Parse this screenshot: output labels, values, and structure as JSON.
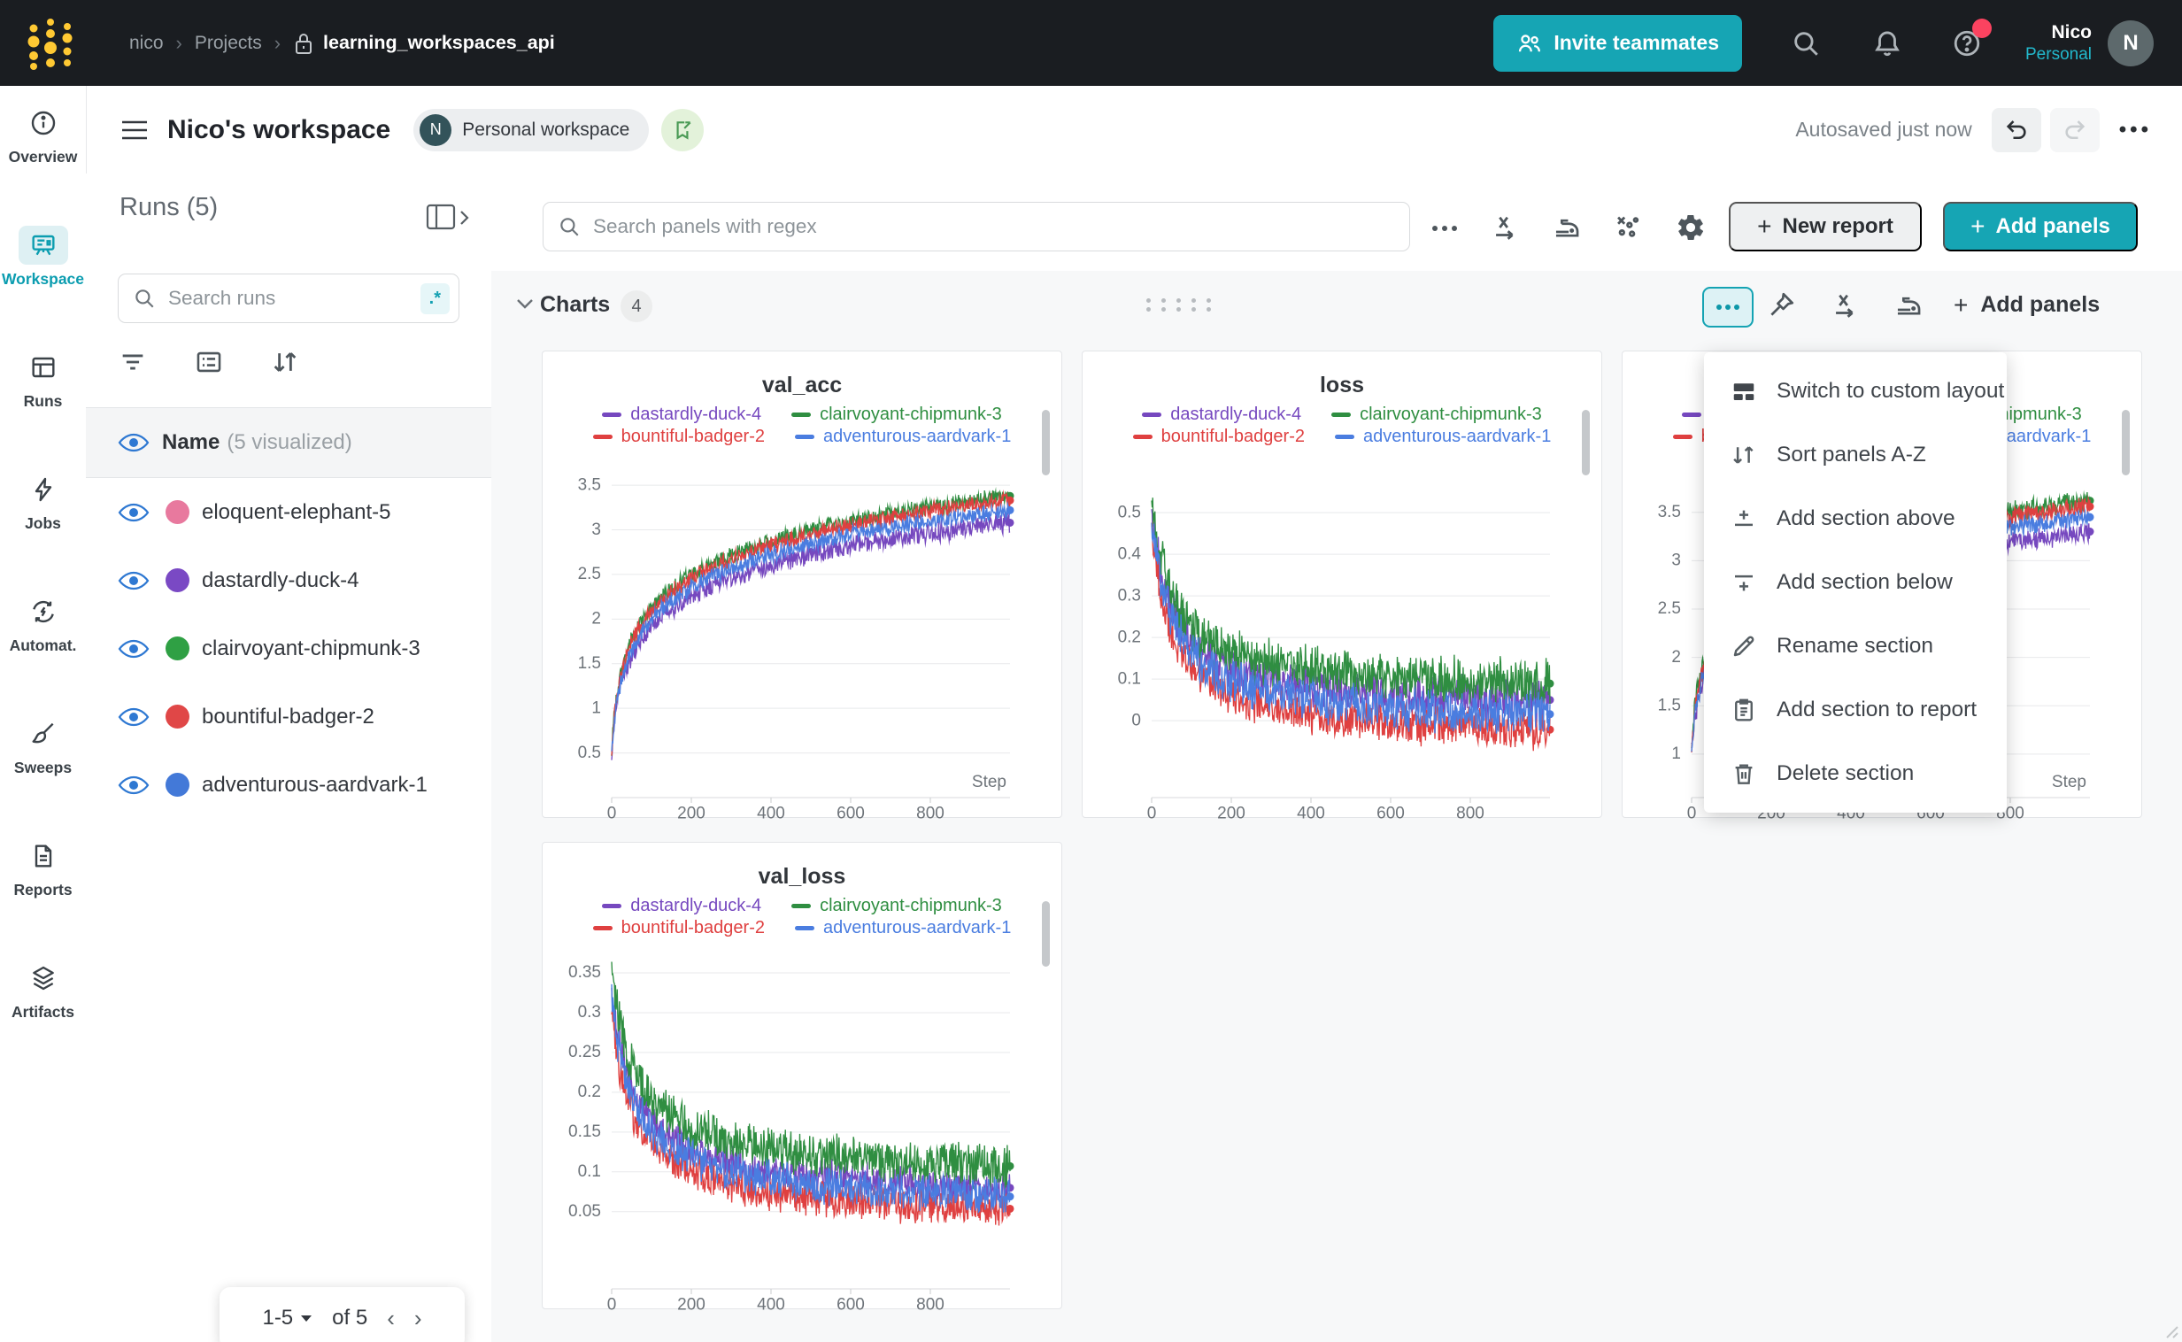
{
  "colors": {
    "accent": "#16a5b4",
    "nav_bg": "#1a1d21",
    "logo_yellow": "#ffc933",
    "eye_blue": "#2e78d2",
    "badge_red": "#fb4360"
  },
  "nav": {
    "breadcrumb_user": "nico",
    "breadcrumb_section": "Projects",
    "project": "learning_workspaces_api",
    "invite_label": "Invite teammates",
    "user_name": "Nico",
    "user_scope": "Personal",
    "avatar_initial": "N"
  },
  "header": {
    "title": "Nico's workspace",
    "badge_initial": "N",
    "badge_label": "Personal workspace",
    "autosaved": "Autosaved just now"
  },
  "sidebar": {
    "items": [
      {
        "label": "Overview",
        "active": false
      },
      {
        "label": "Workspace",
        "active": true
      },
      {
        "label": "Runs",
        "active": false
      },
      {
        "label": "Jobs",
        "active": false
      },
      {
        "label": "Automat.",
        "active": false
      },
      {
        "label": "Sweeps",
        "active": false
      },
      {
        "label": "Reports",
        "active": false
      },
      {
        "label": "Artifacts",
        "active": false
      }
    ]
  },
  "runs": {
    "title": "Runs (5)",
    "search_placeholder": "Search runs",
    "regex_label": ".*",
    "name_header": "Name",
    "visualized_label": "(5 visualized)",
    "items": [
      {
        "name": "eloquent-elephant-5",
        "color": "#e8799e"
      },
      {
        "name": "dastardly-duck-4",
        "color": "#7a49c4"
      },
      {
        "name": "clairvoyant-chipmunk-3",
        "color": "#2fa044"
      },
      {
        "name": "bountiful-badger-2",
        "color": "#e04747"
      },
      {
        "name": "adventurous-aardvark-1",
        "color": "#4379d8"
      }
    ],
    "pagination": {
      "range": "1-5",
      "of": "of 5"
    }
  },
  "toolbar": {
    "search_placeholder": "Search panels with regex",
    "new_report": "New report",
    "add_panels": "Add panels"
  },
  "section": {
    "label": "Charts",
    "count": "4",
    "add_panels": "Add panels"
  },
  "menu": {
    "items": [
      {
        "label": "Switch to custom layout"
      },
      {
        "label": "Sort panels A-Z"
      },
      {
        "label": "Add section above"
      },
      {
        "label": "Add section below"
      },
      {
        "label": "Rename section"
      },
      {
        "label": "Add section to report"
      },
      {
        "label": "Delete section"
      }
    ]
  },
  "chart_data": [
    {
      "id": "val_acc",
      "type": "line",
      "title": "val_acc",
      "xlabel": "Step",
      "show_xlabel": true,
      "x_range": [
        0,
        1000
      ],
      "x_ticks": [
        0,
        200,
        400,
        600,
        800
      ],
      "y_range": [
        0.0,
        3.63
      ],
      "y_ticks": [
        0.5,
        1,
        1.5,
        2,
        2.5,
        3,
        3.5
      ],
      "grid": true,
      "legend_position": "top",
      "series": [
        {
          "name": "dastardly-duck-4",
          "color": "#7648bf",
          "curve": "log_rise",
          "start": 0.5,
          "end": 3.08,
          "tau": 7,
          "noise": 0.1
        },
        {
          "name": "clairvoyant-chipmunk-3",
          "color": "#2f8e41",
          "curve": "log_rise",
          "start": 0.52,
          "end": 3.38,
          "tau": 6,
          "noise": 0.08
        },
        {
          "name": "bountiful-badger-2",
          "color": "#df4040",
          "curve": "log_rise",
          "start": 0.5,
          "end": 3.33,
          "tau": 6,
          "noise": 0.08
        },
        {
          "name": "adventurous-aardvark-1",
          "color": "#4a7de0",
          "curve": "log_rise",
          "start": 0.48,
          "end": 3.22,
          "tau": 6.5,
          "noise": 0.08
        }
      ]
    },
    {
      "id": "loss",
      "type": "line",
      "title": "loss",
      "xlabel": "Step",
      "show_xlabel": false,
      "x_range": [
        0,
        1000
      ],
      "x_ticks": [
        0,
        200,
        400,
        600,
        800
      ],
      "y_range": [
        -0.185,
        0.594
      ],
      "y_ticks": [
        0,
        0.1,
        0.2,
        0.3,
        0.4,
        0.5
      ],
      "grid": true,
      "legend_position": "top",
      "series": [
        {
          "name": "dastardly-duck-4",
          "color": "#7648bf",
          "curve": "decay_pow",
          "start": 0.5,
          "end": 0.025,
          "tau": 55,
          "p": 1.0,
          "noise": 0.045
        },
        {
          "name": "clairvoyant-chipmunk-3",
          "color": "#2f8e41",
          "curve": "decay_pow",
          "start": 0.53,
          "end": 0.065,
          "tau": 55,
          "p": 1.0,
          "noise": 0.05
        },
        {
          "name": "bountiful-badger-2",
          "color": "#df4040",
          "curve": "decay_pow",
          "start": 0.46,
          "end": -0.048,
          "tau": 55,
          "p": 1.0,
          "noise": 0.042
        },
        {
          "name": "adventurous-aardvark-1",
          "color": "#4a7de0",
          "curve": "decay_pow",
          "start": 0.48,
          "end": -0.01,
          "tau": 55,
          "p": 1.0,
          "noise": 0.045
        }
      ]
    },
    {
      "id": "panel3",
      "type": "line",
      "title": "",
      "xlabel": "Step",
      "show_xlabel": true,
      "x_range": [
        0,
        1000
      ],
      "x_ticks": [
        0,
        200,
        400,
        600,
        800
      ],
      "y_range": [
        0.55,
        3.9
      ],
      "y_ticks": [
        1,
        1.5,
        2,
        2.5,
        3,
        3.5
      ],
      "grid": true,
      "legend_position": "top",
      "series": [
        {
          "name": "dastardly-duck-4",
          "color": "#7648bf",
          "curve": "log_rise",
          "start": 1.0,
          "end": 3.3,
          "tau": 7,
          "noise": 0.1
        },
        {
          "name": "clairvoyant-chipmunk-3",
          "color": "#2f8e41",
          "curve": "log_rise",
          "start": 1.05,
          "end": 3.62,
          "tau": 6,
          "noise": 0.09
        },
        {
          "name": "bountiful-badger-2",
          "color": "#df4040",
          "curve": "log_rise",
          "start": 1.0,
          "end": 3.56,
          "tau": 6,
          "noise": 0.09
        },
        {
          "name": "adventurous-aardvark-1",
          "color": "#4a7de0",
          "curve": "log_rise",
          "start": 0.98,
          "end": 3.45,
          "tau": 6.5,
          "noise": 0.09
        }
      ]
    },
    {
      "id": "val_loss",
      "type": "line",
      "title": "val_loss",
      "xlabel": "Step",
      "show_xlabel": false,
      "x_range": [
        0,
        1000
      ],
      "x_ticks": [
        0,
        200,
        400,
        600,
        800
      ],
      "y_range": [
        -0.047,
        0.36
      ],
      "y_ticks": [
        0.05,
        0.1,
        0.15,
        0.2,
        0.25,
        0.3,
        0.35
      ],
      "grid": true,
      "legend_position": "top",
      "series": [
        {
          "name": "dastardly-duck-4",
          "color": "#7648bf",
          "curve": "decay_pow",
          "start": 0.33,
          "end": 0.058,
          "tau": 45,
          "p": 0.8,
          "noise": 0.02
        },
        {
          "name": "clairvoyant-chipmunk-3",
          "color": "#2f8e41",
          "curve": "decay_pow",
          "start": 0.36,
          "end": 0.085,
          "tau": 45,
          "p": 0.8,
          "noise": 0.024
        },
        {
          "name": "bountiful-badger-2",
          "color": "#df4040",
          "curve": "decay_pow",
          "start": 0.3,
          "end": 0.032,
          "tau": 45,
          "p": 0.8,
          "noise": 0.02
        },
        {
          "name": "adventurous-aardvark-1",
          "color": "#4a7de0",
          "curve": "decay_pow",
          "start": 0.32,
          "end": 0.047,
          "tau": 45,
          "p": 0.8,
          "noise": 0.02
        }
      ]
    }
  ]
}
